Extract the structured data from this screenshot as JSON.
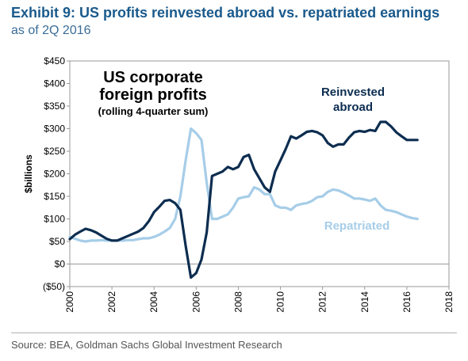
{
  "header": {
    "title": "Exhibit 9: US profits reinvested abroad vs. repatriated earnings",
    "subtitle": "as of 2Q 2016"
  },
  "footer": {
    "source": "Source: BEA, Goldman Sachs Global Investment Research"
  },
  "chart_data": {
    "type": "line",
    "title": "US corporate foreign profits",
    "subtitle": "(rolling 4-quarter sum)",
    "ylabel": "$billions",
    "xlim": [
      2000,
      2018
    ],
    "ylim": [
      -50,
      450
    ],
    "x_ticks": [
      2000,
      2002,
      2004,
      2006,
      2008,
      2010,
      2012,
      2014,
      2016,
      2018
    ],
    "x_tick_labels": [
      "2000",
      "2002",
      "2004",
      "2006",
      "2008",
      "2010",
      "2012",
      "2014",
      "2016",
      "2018"
    ],
    "y_ticks": [
      -50,
      0,
      50,
      100,
      150,
      200,
      250,
      300,
      350,
      400,
      450
    ],
    "y_tick_labels": [
      "($50)",
      "$0",
      "$50",
      "$100",
      "$150",
      "$200",
      "$250",
      "$300",
      "$350",
      "$400",
      "$450"
    ],
    "grid": false,
    "series": [
      {
        "name": "Reinvested abroad",
        "name_lines": [
          "Reinvested",
          "abroad"
        ],
        "color": "#0d2d50",
        "x": [
          2000.0,
          2000.25,
          2000.5,
          2000.75,
          2001.0,
          2001.25,
          2001.5,
          2001.75,
          2002.0,
          2002.25,
          2002.5,
          2002.75,
          2003.0,
          2003.25,
          2003.5,
          2003.75,
          2004.0,
          2004.25,
          2004.5,
          2004.75,
          2005.0,
          2005.25,
          2005.5,
          2005.75,
          2006.0,
          2006.25,
          2006.5,
          2006.75,
          2007.0,
          2007.25,
          2007.5,
          2007.75,
          2008.0,
          2008.25,
          2008.5,
          2008.75,
          2009.0,
          2009.25,
          2009.5,
          2009.75,
          2010.0,
          2010.25,
          2010.5,
          2010.75,
          2011.0,
          2011.25,
          2011.5,
          2011.75,
          2012.0,
          2012.25,
          2012.5,
          2012.75,
          2013.0,
          2013.25,
          2013.5,
          2013.75,
          2014.0,
          2014.25,
          2014.5,
          2014.75,
          2015.0,
          2015.25,
          2015.5,
          2015.75,
          2016.0,
          2016.25,
          2016.5
        ],
        "values": [
          55,
          65,
          72,
          78,
          75,
          70,
          63,
          56,
          52,
          52,
          57,
          62,
          67,
          72,
          80,
          95,
          115,
          127,
          140,
          142,
          135,
          120,
          40,
          -30,
          -20,
          10,
          70,
          195,
          200,
          205,
          215,
          210,
          215,
          237,
          242,
          210,
          190,
          170,
          160,
          205,
          230,
          255,
          283,
          278,
          285,
          293,
          295,
          292,
          285,
          268,
          260,
          265,
          265,
          280,
          292,
          295,
          293,
          297,
          295,
          315,
          315,
          305,
          292,
          283,
          275,
          275,
          275
        ]
      },
      {
        "name": "Repatriated",
        "name_lines": [
          "Repatriated"
        ],
        "color": "#a6cde8",
        "x": [
          2000.0,
          2000.25,
          2000.5,
          2000.75,
          2001.0,
          2001.25,
          2001.5,
          2001.75,
          2002.0,
          2002.25,
          2002.5,
          2002.75,
          2003.0,
          2003.25,
          2003.5,
          2003.75,
          2004.0,
          2004.25,
          2004.5,
          2004.75,
          2005.0,
          2005.25,
          2005.5,
          2005.75,
          2006.0,
          2006.25,
          2006.5,
          2006.75,
          2007.0,
          2007.25,
          2007.5,
          2007.75,
          2008.0,
          2008.25,
          2008.5,
          2008.75,
          2009.0,
          2009.25,
          2009.5,
          2009.75,
          2010.0,
          2010.25,
          2010.5,
          2010.75,
          2011.0,
          2011.25,
          2011.5,
          2011.75,
          2012.0,
          2012.25,
          2012.5,
          2012.75,
          2013.0,
          2013.25,
          2013.5,
          2013.75,
          2014.0,
          2014.25,
          2014.5,
          2014.75,
          2015.0,
          2015.25,
          2015.5,
          2015.75,
          2016.0,
          2016.25,
          2016.5
        ],
        "values": [
          60,
          56,
          52,
          50,
          52,
          52,
          53,
          52,
          52,
          52,
          52,
          53,
          53,
          55,
          57,
          57,
          60,
          65,
          72,
          80,
          100,
          150,
          230,
          300,
          290,
          275,
          180,
          100,
          100,
          105,
          110,
          125,
          145,
          148,
          150,
          170,
          165,
          155,
          155,
          130,
          125,
          125,
          120,
          130,
          133,
          135,
          140,
          148,
          150,
          160,
          165,
          163,
          158,
          152,
          145,
          145,
          143,
          140,
          145,
          130,
          120,
          118,
          115,
          110,
          105,
          102,
          100
        ]
      }
    ],
    "annotations": {
      "title_lines": [
        "US corporate",
        "foreign profits"
      ],
      "note": "(rolling 4-quarter sum)"
    }
  }
}
